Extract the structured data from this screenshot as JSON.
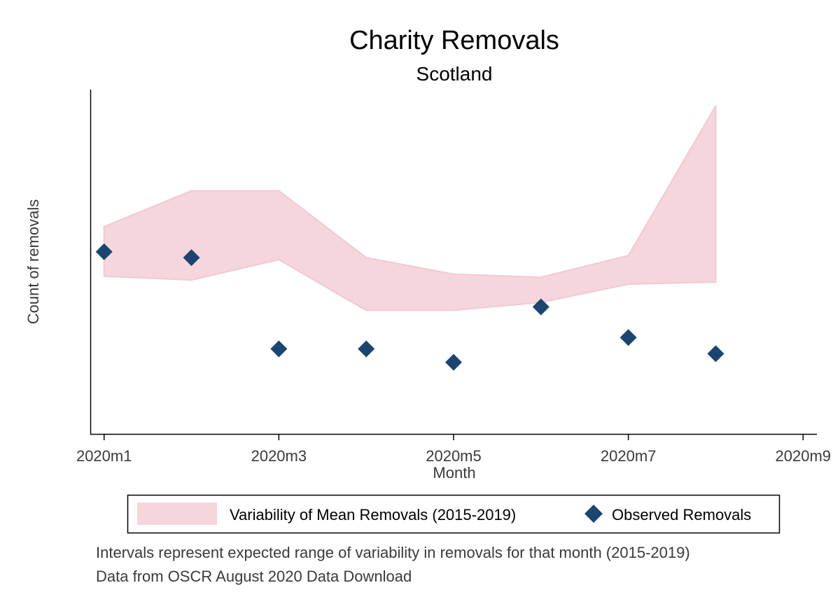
{
  "chart_data": {
    "type": "area",
    "title": "Charity Removals",
    "subtitle": "Scotland",
    "xlabel": "Month",
    "ylabel": "Count of removals",
    "x_ticks": [
      "2020m1",
      "2020m3",
      "2020m5",
      "2020m7",
      "2020m9"
    ],
    "x_tick_values": [
      1,
      3,
      5,
      7,
      9
    ],
    "xlim": [
      0.85,
      9.15
    ],
    "ylim": [
      0,
      100
    ],
    "y_tick_labels_shown": false,
    "grid": false,
    "band": {
      "name": "Variability of Mean Removals (2015-2019)",
      "color": "#f4d6dc",
      "x": [
        1,
        2,
        3,
        4,
        5,
        6,
        7,
        8
      ],
      "lower": [
        45.8,
        44.7,
        50.6,
        35.9,
        35.9,
        38.2,
        43.5,
        44.1
      ],
      "upper": [
        60.2,
        70.6,
        70.6,
        51.2,
        46.4,
        45.5,
        51.8,
        95.3
      ]
    },
    "series": [
      {
        "name": "Observed Removals",
        "marker": "diamond",
        "color": "#1a4570",
        "x": [
          1,
          2,
          3,
          4,
          5,
          6,
          7,
          8
        ],
        "values": [
          52.9,
          51.2,
          24.7,
          24.7,
          20.8,
          36.9,
          28.0,
          23.3
        ]
      }
    ],
    "legend_position": "bottom",
    "notes": [
      "Intervals represent expected range of variability in removals for that month (2015-2019)",
      "Data from OSCR August 2020 Data Download"
    ]
  }
}
